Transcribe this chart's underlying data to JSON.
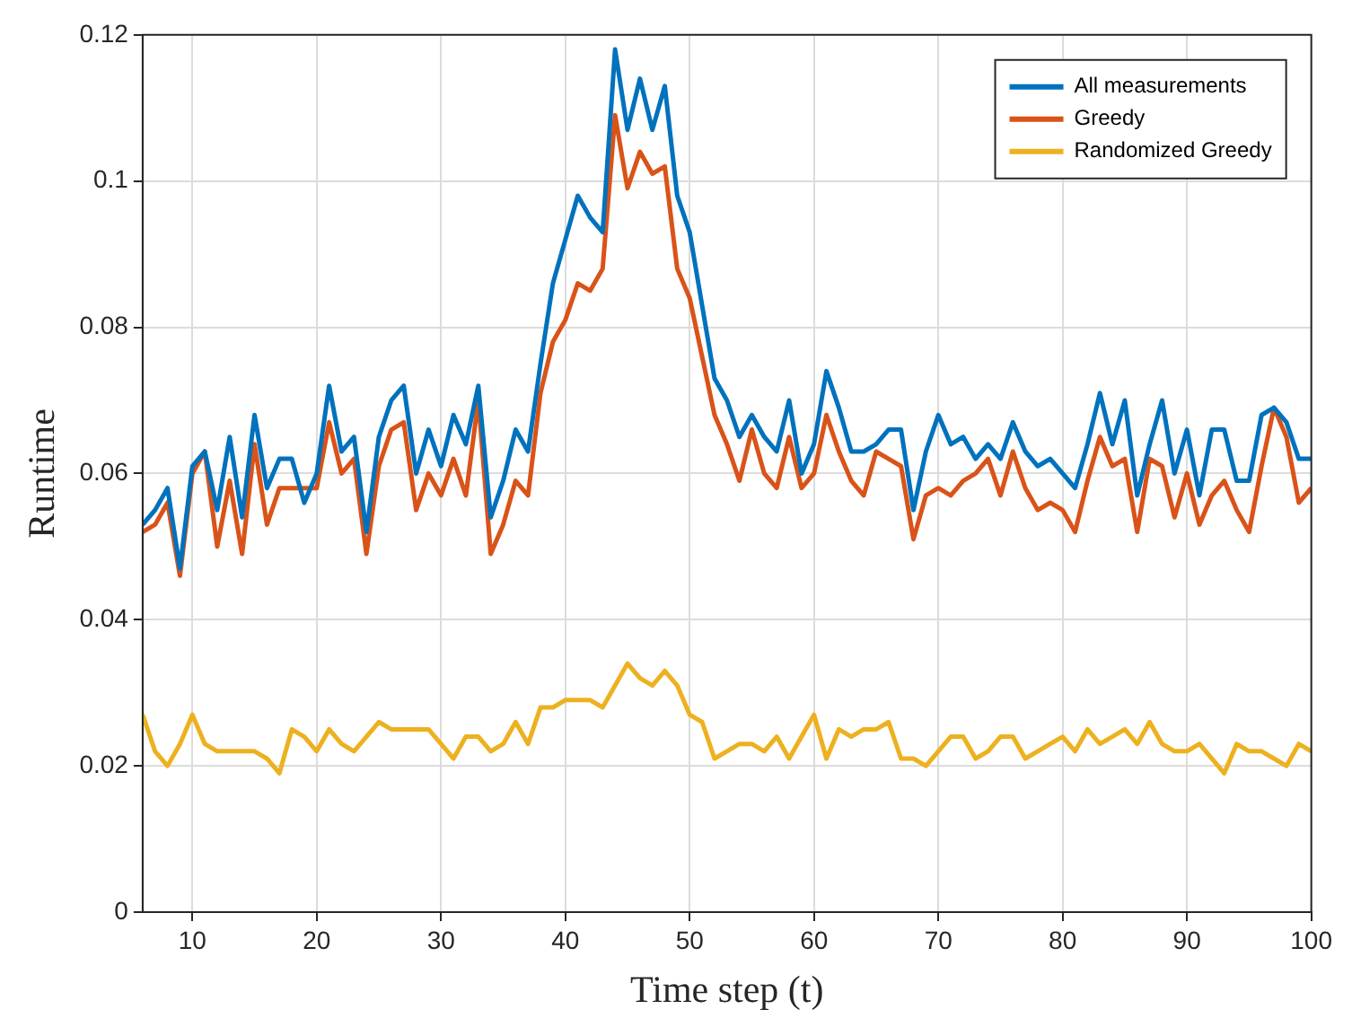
{
  "chart_data": {
    "type": "line",
    "xlabel": "Time step (t)",
    "ylabel": "Runtime",
    "x": [
      6,
      7,
      8,
      9,
      10,
      11,
      12,
      13,
      14,
      15,
      16,
      17,
      18,
      19,
      20,
      21,
      22,
      23,
      24,
      25,
      26,
      27,
      28,
      29,
      30,
      31,
      32,
      33,
      34,
      35,
      36,
      37,
      38,
      39,
      40,
      41,
      42,
      43,
      44,
      45,
      46,
      47,
      48,
      49,
      50,
      51,
      52,
      53,
      54,
      55,
      56,
      57,
      58,
      59,
      60,
      61,
      62,
      63,
      64,
      65,
      66,
      67,
      68,
      69,
      70,
      71,
      72,
      73,
      74,
      75,
      76,
      77,
      78,
      79,
      80,
      81,
      82,
      83,
      84,
      85,
      86,
      87,
      88,
      89,
      90,
      91,
      92,
      93,
      94,
      95,
      96,
      97,
      98,
      99,
      100
    ],
    "series": [
      {
        "name": "All measurements",
        "color": "#0072bd",
        "values": [
          0.053,
          0.055,
          0.058,
          0.047,
          0.061,
          0.063,
          0.055,
          0.065,
          0.054,
          0.068,
          0.058,
          0.062,
          0.062,
          0.056,
          0.06,
          0.072,
          0.063,
          0.065,
          0.052,
          0.065,
          0.07,
          0.072,
          0.06,
          0.066,
          0.061,
          0.068,
          0.064,
          0.072,
          0.054,
          0.059,
          0.066,
          0.063,
          0.075,
          0.086,
          0.092,
          0.098,
          0.095,
          0.093,
          0.118,
          0.107,
          0.114,
          0.107,
          0.113,
          0.098,
          0.093,
          0.083,
          0.073,
          0.07,
          0.065,
          0.068,
          0.065,
          0.063,
          0.07,
          0.06,
          0.064,
          0.074,
          0.069,
          0.063,
          0.063,
          0.064,
          0.066,
          0.066,
          0.055,
          0.063,
          0.068,
          0.064,
          0.065,
          0.062,
          0.064,
          0.062,
          0.067,
          0.063,
          0.061,
          0.062,
          0.06,
          0.058,
          0.064,
          0.071,
          0.064,
          0.07,
          0.057,
          0.064,
          0.07,
          0.06,
          0.066,
          0.057,
          0.066,
          0.066,
          0.059,
          0.059,
          0.068,
          0.069,
          0.067,
          0.062,
          0.062
        ]
      },
      {
        "name": "Greedy",
        "color": "#d95319",
        "values": [
          0.052,
          0.053,
          0.056,
          0.046,
          0.06,
          0.063,
          0.05,
          0.059,
          0.049,
          0.064,
          0.053,
          0.058,
          0.058,
          0.058,
          0.058,
          0.067,
          0.06,
          0.062,
          0.049,
          0.061,
          0.066,
          0.067,
          0.055,
          0.06,
          0.057,
          0.062,
          0.057,
          0.07,
          0.049,
          0.053,
          0.059,
          0.057,
          0.071,
          0.078,
          0.081,
          0.086,
          0.085,
          0.088,
          0.109,
          0.099,
          0.104,
          0.101,
          0.102,
          0.088,
          0.084,
          0.076,
          0.068,
          0.064,
          0.059,
          0.066,
          0.06,
          0.058,
          0.065,
          0.058,
          0.06,
          0.068,
          0.063,
          0.059,
          0.057,
          0.063,
          0.062,
          0.061,
          0.051,
          0.057,
          0.058,
          0.057,
          0.059,
          0.06,
          0.062,
          0.057,
          0.063,
          0.058,
          0.055,
          0.056,
          0.055,
          0.052,
          0.059,
          0.065,
          0.061,
          0.062,
          0.052,
          0.062,
          0.061,
          0.054,
          0.06,
          0.053,
          0.057,
          0.059,
          0.055,
          0.052,
          0.061,
          0.069,
          0.065,
          0.056,
          0.058
        ]
      },
      {
        "name": "Randomized Greedy",
        "color": "#edb120",
        "values": [
          0.027,
          0.022,
          0.02,
          0.023,
          0.027,
          0.023,
          0.022,
          0.022,
          0.022,
          0.022,
          0.021,
          0.019,
          0.025,
          0.024,
          0.022,
          0.025,
          0.023,
          0.022,
          0.024,
          0.026,
          0.025,
          0.025,
          0.025,
          0.025,
          0.023,
          0.021,
          0.024,
          0.024,
          0.022,
          0.023,
          0.026,
          0.023,
          0.028,
          0.028,
          0.029,
          0.029,
          0.029,
          0.028,
          0.031,
          0.034,
          0.032,
          0.031,
          0.033,
          0.031,
          0.027,
          0.026,
          0.021,
          0.022,
          0.023,
          0.023,
          0.022,
          0.024,
          0.021,
          0.024,
          0.027,
          0.021,
          0.025,
          0.024,
          0.025,
          0.025,
          0.026,
          0.021,
          0.021,
          0.02,
          0.022,
          0.024,
          0.024,
          0.021,
          0.022,
          0.024,
          0.024,
          0.021,
          0.022,
          0.023,
          0.024,
          0.022,
          0.025,
          0.023,
          0.024,
          0.025,
          0.023,
          0.026,
          0.023,
          0.022,
          0.022,
          0.023,
          0.021,
          0.019,
          0.023,
          0.022,
          0.022,
          0.021,
          0.02,
          0.023,
          0.022
        ]
      }
    ],
    "xlim": [
      6,
      100
    ],
    "xticks": [
      10,
      20,
      30,
      40,
      50,
      60,
      70,
      80,
      90,
      100
    ],
    "ylim": [
      0,
      0.12
    ],
    "yticks": [
      0,
      0.02,
      0.04,
      0.06,
      0.08,
      0.1,
      0.12
    ],
    "grid": true,
    "legend": "top right",
    "marker": "none",
    "line_style": "solid"
  }
}
